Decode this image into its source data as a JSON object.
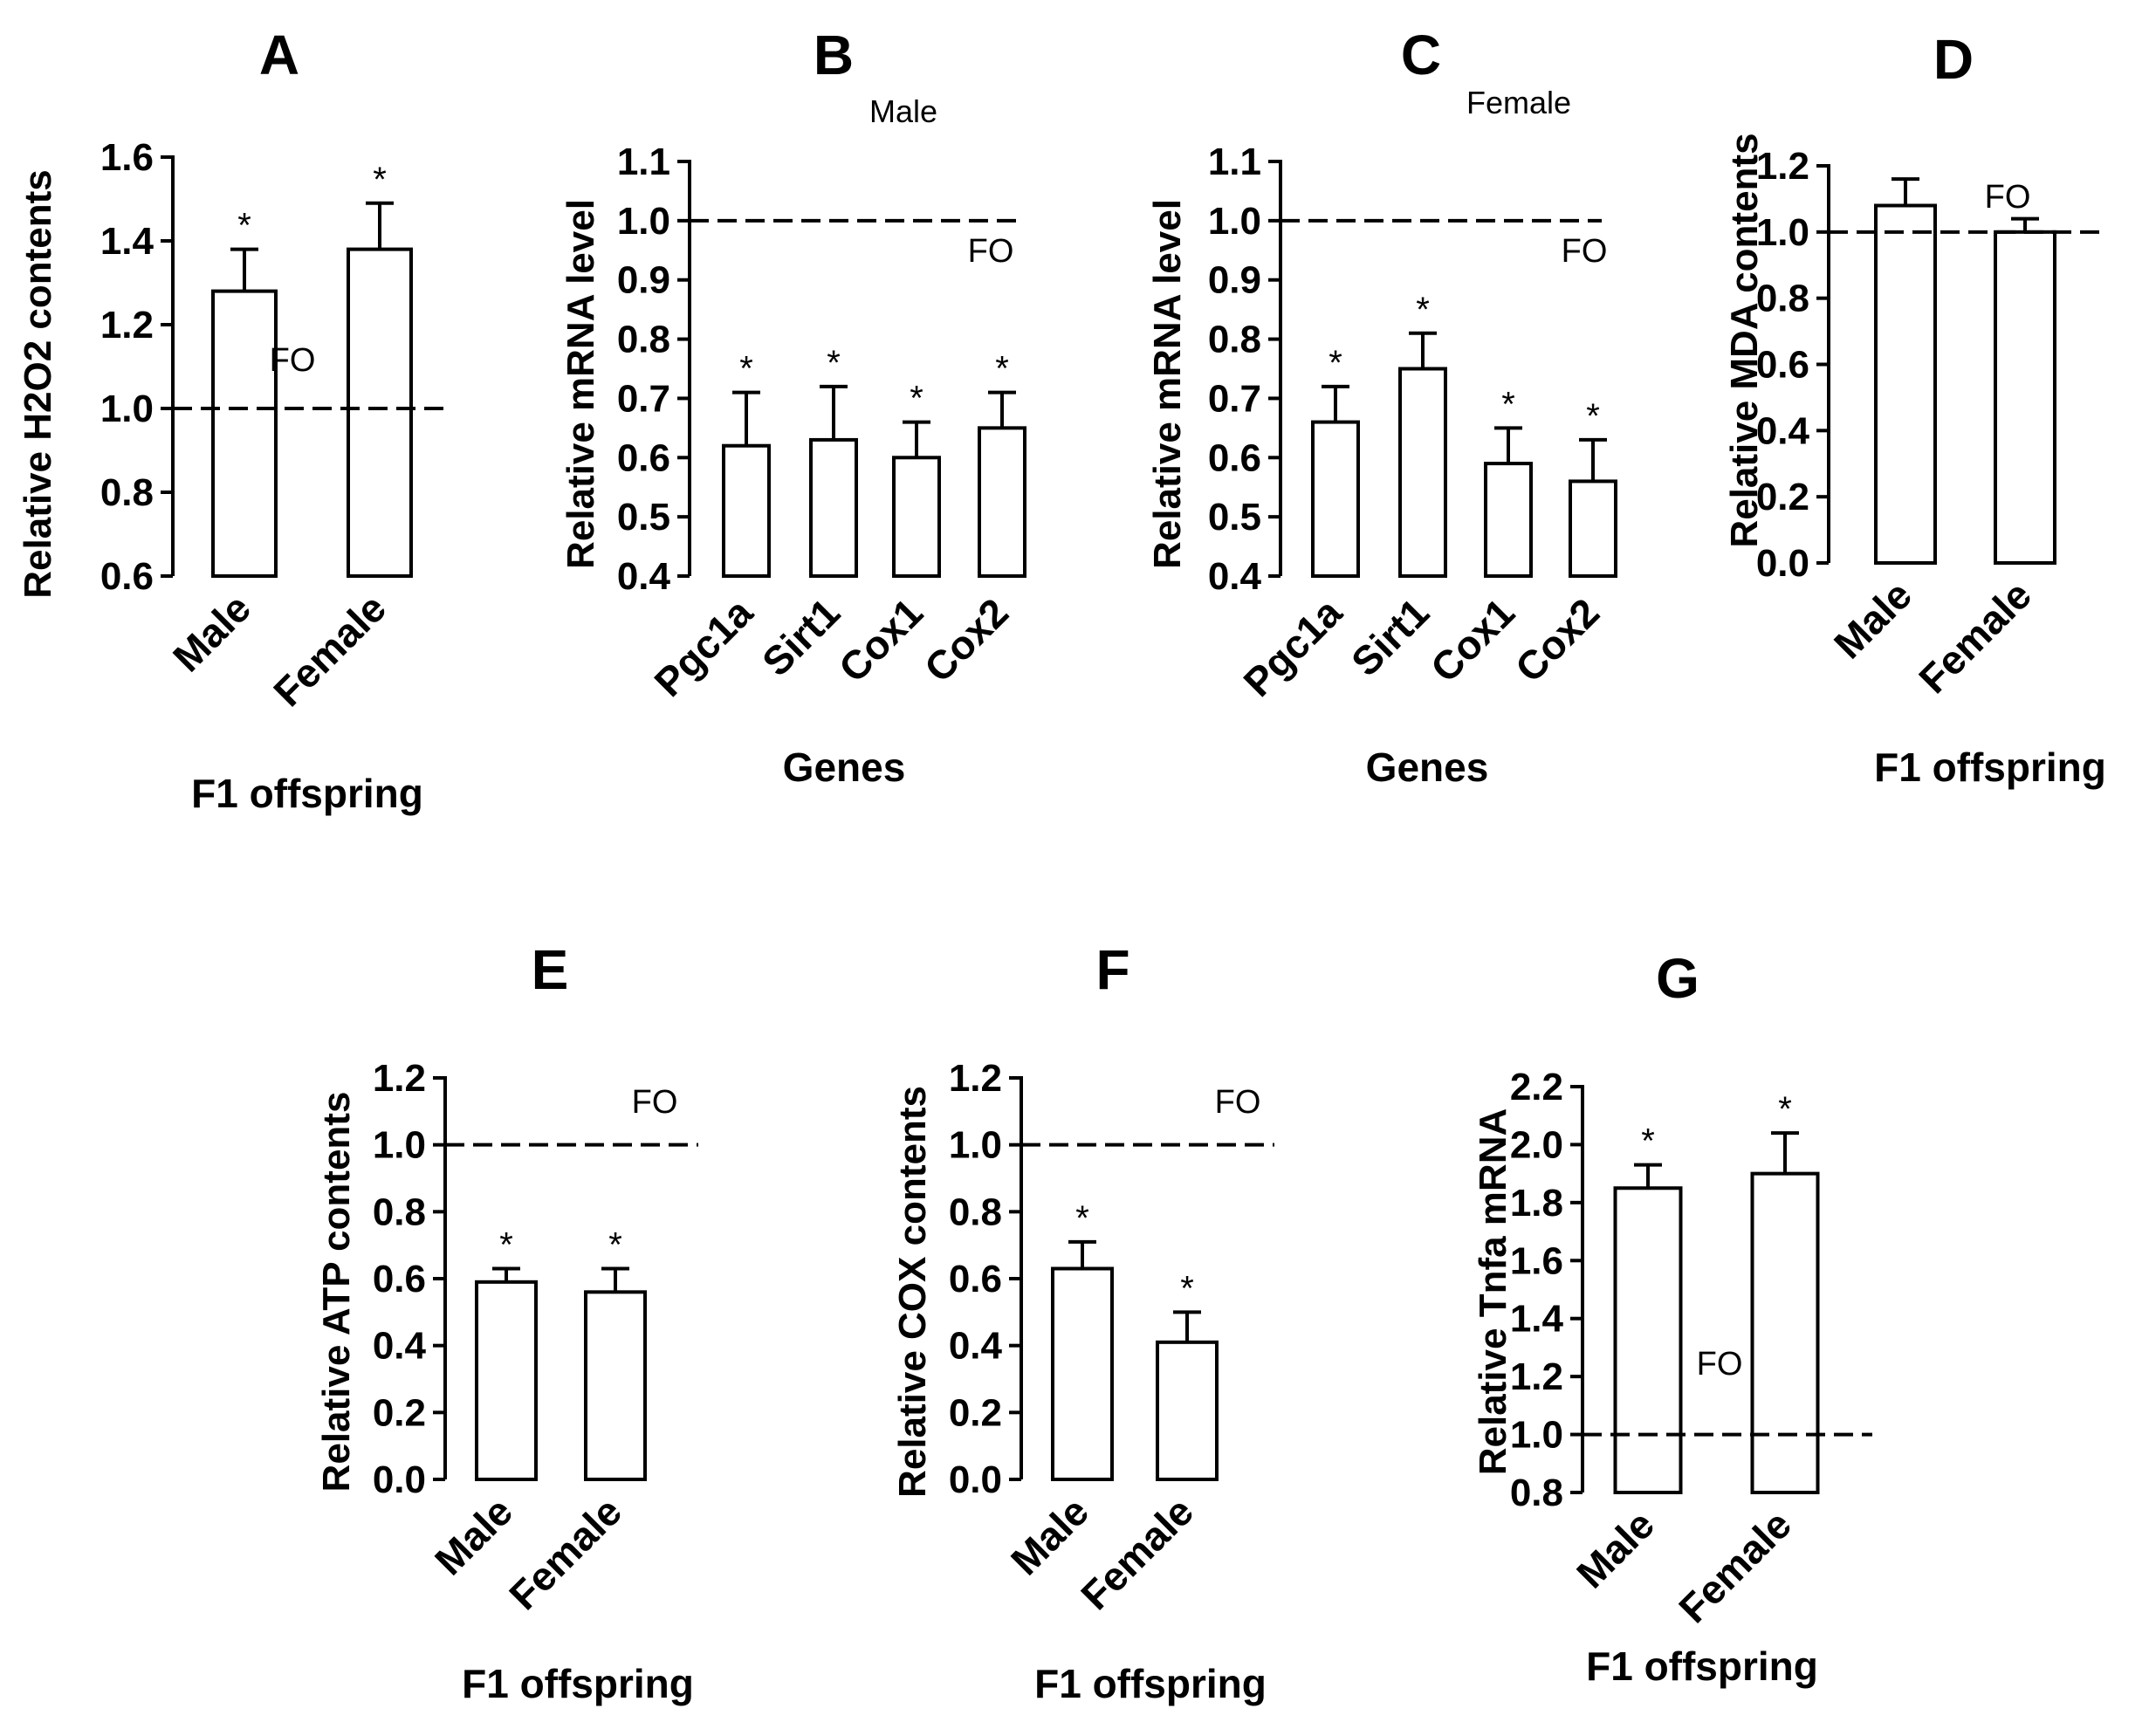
{
  "chart_data": [
    {
      "type": "bar",
      "panel": "A",
      "subtitle": "",
      "ylabel": "Relative H2O2 contents",
      "xlabel": "F1 offspring",
      "categories": [
        "Male",
        "Female"
      ],
      "values": [
        1.28,
        1.38
      ],
      "errors": [
        0.1,
        0.11
      ],
      "significance": [
        "*",
        "*"
      ],
      "ylim": [
        0.6,
        1.6
      ],
      "yticks": [
        "0.6",
        "0.8",
        "1.0",
        "1.2",
        "1.4",
        "1.6"
      ],
      "reference_line": {
        "value": 1.0,
        "label": "FO"
      }
    },
    {
      "type": "bar",
      "panel": "B",
      "subtitle": "Male",
      "ylabel": "Relative mRNA level",
      "xlabel": "Genes",
      "categories": [
        "Pgc1a",
        "Sirt1",
        "Cox1",
        "Cox2"
      ],
      "values": [
        0.62,
        0.63,
        0.6,
        0.65
      ],
      "errors": [
        0.09,
        0.09,
        0.06,
        0.06
      ],
      "significance": [
        "*",
        "*",
        "*",
        "*"
      ],
      "ylim": [
        0.4,
        1.1
      ],
      "yticks": [
        "0.4",
        "0.5",
        "0.6",
        "0.7",
        "0.8",
        "0.9",
        "1.0",
        "1.1"
      ],
      "reference_line": {
        "value": 1.0,
        "label": "FO"
      }
    },
    {
      "type": "bar",
      "panel": "C",
      "subtitle": "Female",
      "ylabel": "Relative mRNA level",
      "xlabel": "Genes",
      "categories": [
        "Pgc1a",
        "Sirt1",
        "Cox1",
        "Cox2"
      ],
      "values": [
        0.66,
        0.75,
        0.59,
        0.56
      ],
      "errors": [
        0.06,
        0.06,
        0.06,
        0.07
      ],
      "significance": [
        "*",
        "*",
        "*",
        "*"
      ],
      "ylim": [
        0.4,
        1.1
      ],
      "yticks": [
        "0.4",
        "0.5",
        "0.6",
        "0.7",
        "0.8",
        "0.9",
        "1.0",
        "1.1"
      ],
      "reference_line": {
        "value": 1.0,
        "label": "FO"
      }
    },
    {
      "type": "bar",
      "panel": "D",
      "subtitle": "",
      "ylabel": "Relative MDA contents",
      "xlabel": "F1 offspring",
      "categories": [
        "Male",
        "Female"
      ],
      "values": [
        1.08,
        1.0
      ],
      "errors": [
        0.08,
        0.04
      ],
      "significance": [
        "",
        ""
      ],
      "ylim": [
        0.0,
        1.2
      ],
      "yticks": [
        "0.0",
        "0.2",
        "0.4",
        "0.6",
        "0.8",
        "1.0",
        "1.2"
      ],
      "reference_line": {
        "value": 1.0,
        "label": "FO"
      }
    },
    {
      "type": "bar",
      "panel": "E",
      "subtitle": "",
      "ylabel": "Relative ATP contents",
      "xlabel": "F1 offspring",
      "categories": [
        "Male",
        "Female"
      ],
      "values": [
        0.59,
        0.56
      ],
      "errors": [
        0.04,
        0.07
      ],
      "significance": [
        "*",
        "*"
      ],
      "ylim": [
        0.0,
        1.2
      ],
      "yticks": [
        "0.0",
        "0.2",
        "0.4",
        "0.6",
        "0.8",
        "1.0",
        "1.2"
      ],
      "reference_line": {
        "value": 1.0,
        "label": "FO"
      }
    },
    {
      "type": "bar",
      "panel": "F",
      "subtitle": "",
      "ylabel": "Relative COX contents",
      "xlabel": "F1 offspring",
      "categories": [
        "Male",
        "Female"
      ],
      "values": [
        0.63,
        0.41
      ],
      "errors": [
        0.08,
        0.09
      ],
      "significance": [
        "*",
        "*"
      ],
      "ylim": [
        0.0,
        1.2
      ],
      "yticks": [
        "0.0",
        "0.2",
        "0.4",
        "0.6",
        "0.8",
        "1.0",
        "1.2"
      ],
      "reference_line": {
        "value": 1.0,
        "label": "FO"
      }
    },
    {
      "type": "bar",
      "panel": "G",
      "subtitle": "",
      "ylabel": "Relative Tnfa mRNA",
      "xlabel": "F1 offspring",
      "categories": [
        "Male",
        "Female"
      ],
      "values": [
        1.85,
        1.9
      ],
      "errors": [
        0.08,
        0.14
      ],
      "significance": [
        "*",
        "*"
      ],
      "ylim": [
        0.8,
        2.2
      ],
      "yticks": [
        "0.8",
        "1.0",
        "1.2",
        "1.4",
        "1.6",
        "1.8",
        "2.0",
        "2.2"
      ],
      "reference_line": {
        "value": 1.0,
        "label": "FO"
      }
    }
  ]
}
